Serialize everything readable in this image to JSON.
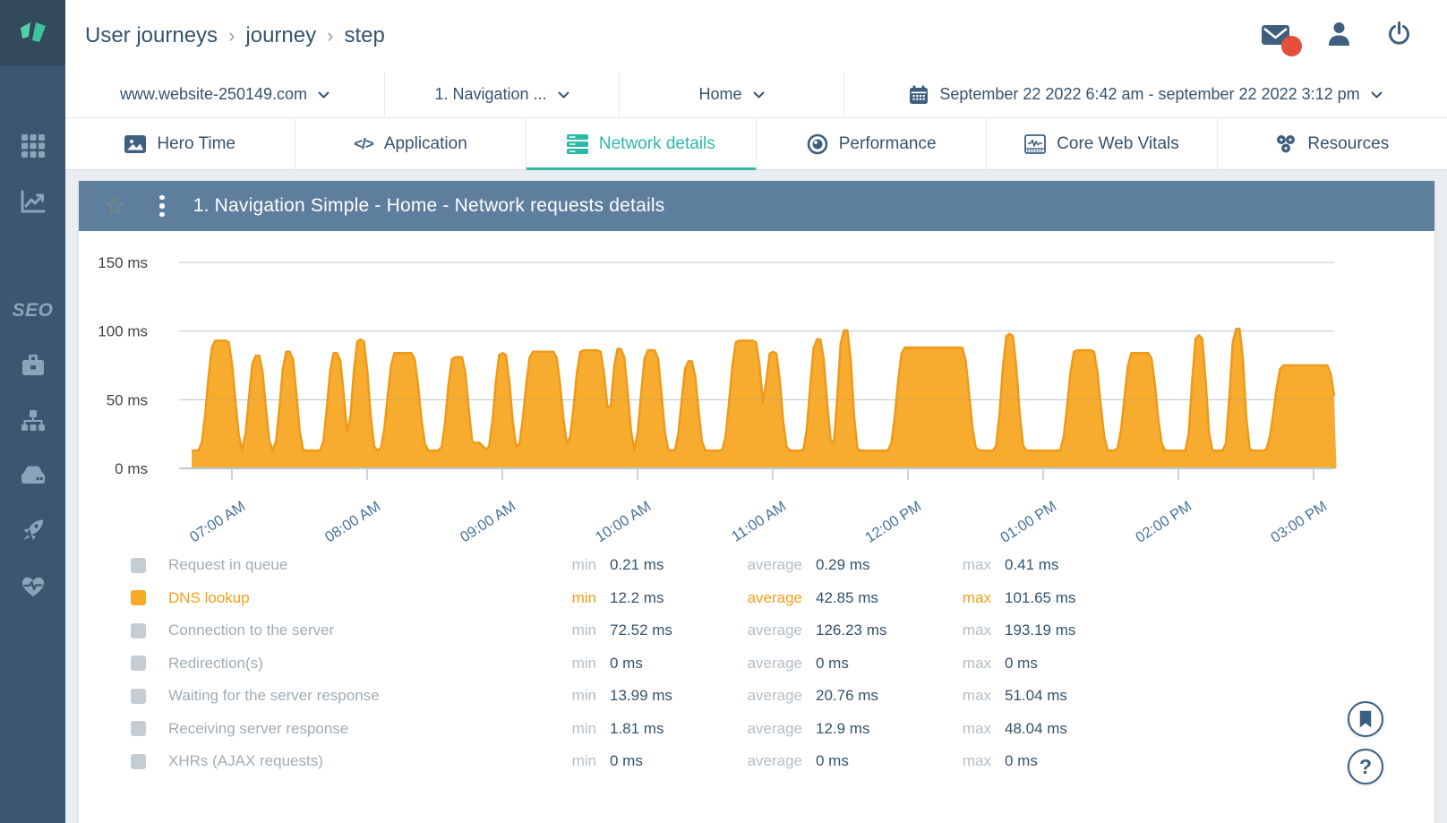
{
  "colors": {
    "accent_teal": "#2CB9A6",
    "series_orange": "#F7A928",
    "notification_red": "#E44F39",
    "sidebar": "#3D566F",
    "widget_header": "#5E7E9E"
  },
  "header": {
    "breadcrumb": {
      "items": [
        {
          "label": "User journeys"
        },
        {
          "label": "journey"
        },
        {
          "label": "step"
        }
      ],
      "separator": "›"
    }
  },
  "sidebar": {
    "seo_label": "SEO"
  },
  "selectors": {
    "website": {
      "value": "www.website-250149.com"
    },
    "step": {
      "value": "1. Navigation ..."
    },
    "page": {
      "value": "Home"
    },
    "date_range": {
      "value": "September 22 2022 6:42 am - september 22 2022 3:12 pm"
    }
  },
  "tabs": {
    "active_index": 2,
    "items": [
      {
        "label": "Hero Time"
      },
      {
        "label": "Application"
      },
      {
        "label": "Network details"
      },
      {
        "label": "Performance"
      },
      {
        "label": "Core Web Vitals"
      },
      {
        "label": "Resources"
      }
    ]
  },
  "widget": {
    "title": "1. Navigation Simple - Home - Network requests details"
  },
  "chart_data": {
    "type": "area",
    "title": "1. Navigation Simple - Home - Network requests details",
    "series": "DNS lookup",
    "unit": "ms",
    "color": "#F7A928",
    "stroke_color": "#EE9A19",
    "ylim": [
      0,
      150
    ],
    "yticks": [
      "0 ms",
      "50 ms",
      "100 ms",
      "150 ms"
    ],
    "xticks": [
      "07:00 AM",
      "08:00 AM",
      "09:00 AM",
      "10:00 AM",
      "11:00 AM",
      "12:00 PM",
      "01:00 PM",
      "02:00 PM",
      "03:00 PM"
    ],
    "x_range_label": "6:42 am - 3:12 pm",
    "grid": true,
    "legend_position": "bottom",
    "baseline_ms": 13,
    "t_unit": "minutes after 06:42 AM",
    "t_end": 508,
    "spikes": [
      {
        "t": 13,
        "v": 93,
        "w": 7,
        "f": 3
      },
      {
        "t": 29,
        "v": 82,
        "w": 6,
        "f": 1
      },
      {
        "t": 43,
        "v": 85,
        "w": 6,
        "f": 1
      },
      {
        "t": 64,
        "v": 84,
        "w": 6,
        "f": 1
      },
      {
        "t": 75,
        "v": 94,
        "w": 6,
        "f": 1
      },
      {
        "t": 94,
        "v": 84,
        "w": 7,
        "f": 4
      },
      {
        "t": 118,
        "v": 81,
        "w": 6,
        "f": 2
      },
      {
        "t": 127,
        "v": 19,
        "w": 5,
        "f": 0
      },
      {
        "t": 138,
        "v": 84,
        "w": 6,
        "f": 1
      },
      {
        "t": 156,
        "v": 85,
        "w": 7,
        "f": 5
      },
      {
        "t": 177,
        "v": 86,
        "w": 7,
        "f": 4
      },
      {
        "t": 190,
        "v": 87,
        "w": 6,
        "f": 1
      },
      {
        "t": 204,
        "v": 86,
        "w": 6,
        "f": 2
      },
      {
        "t": 221,
        "v": 78,
        "w": 6,
        "f": 1
      },
      {
        "t": 246,
        "v": 93,
        "w": 7,
        "f": 4
      },
      {
        "t": 258,
        "v": 85,
        "w": 6,
        "f": 1
      },
      {
        "t": 278,
        "v": 94,
        "w": 6,
        "f": 1
      },
      {
        "t": 290,
        "v": 100.5,
        "w": 5,
        "f": 1
      },
      {
        "t": 329,
        "v": 88,
        "w": 7,
        "f": 13
      },
      {
        "t": 363,
        "v": 98,
        "w": 6,
        "f": 1
      },
      {
        "t": 396,
        "v": 86,
        "w": 7,
        "f": 4
      },
      {
        "t": 421,
        "v": 84,
        "w": 7,
        "f": 4
      },
      {
        "t": 447,
        "v": 97,
        "w": 5,
        "f": 1
      },
      {
        "t": 464,
        "v": 101.65,
        "w": 5,
        "f": 1
      },
      {
        "t": 494,
        "v": 75,
        "w": 8,
        "f": 10
      }
    ]
  },
  "legend": {
    "stat_labels": [
      "min",
      "average",
      "max"
    ],
    "rows": [
      {
        "label": "Request in queue",
        "active": false,
        "min": "0.21 ms",
        "average": "0.29 ms",
        "max": "0.41 ms"
      },
      {
        "label": "DNS lookup",
        "active": true,
        "min": "12.2 ms",
        "average": "42.85 ms",
        "max": "101.65 ms"
      },
      {
        "label": "Connection to the server",
        "active": false,
        "min": "72.52 ms",
        "average": "126.23 ms",
        "max": "193.19 ms"
      },
      {
        "label": "Redirection(s)",
        "active": false,
        "min": "0 ms",
        "average": "0 ms",
        "max": "0 ms"
      },
      {
        "label": "Waiting for the server response",
        "active": false,
        "min": "13.99 ms",
        "average": "20.76 ms",
        "max": "51.04 ms"
      },
      {
        "label": "Receiving server response",
        "active": false,
        "min": "1.81 ms",
        "average": "12.9 ms",
        "max": "48.04 ms"
      },
      {
        "label": "XHRs (AJAX requests)",
        "active": false,
        "min": "0 ms",
        "average": "0 ms",
        "max": "0 ms"
      }
    ]
  },
  "floating": {
    "help_label": "?"
  }
}
